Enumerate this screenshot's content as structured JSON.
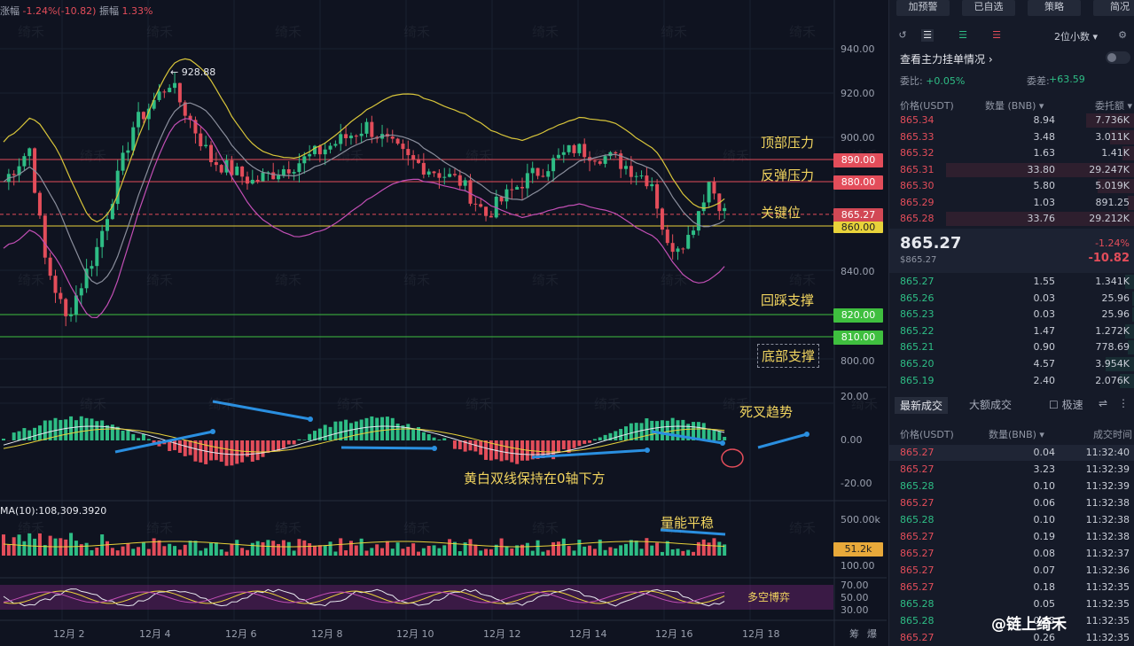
{
  "header": {
    "change_label": "涨幅",
    "change_value": "-1.24%(-10.82)",
    "amplitude_label": "振幅",
    "amplitude_value": "1.33%"
  },
  "annotations": {
    "top_pressure": "顶部压力",
    "rebound_pressure": "反弹压力",
    "key_level": "关键位",
    "pullback_support": "回踩支撑",
    "bottom_support": "底部支撑",
    "death_cross": "死叉趋势",
    "below_zero": "黄白双线保持在0轴下方",
    "volume_stable": "量能平稳",
    "bull_bear": "多空博弈",
    "high_marker": "← 928.88"
  },
  "price_levels": {
    "p890": "890.00",
    "p880": "880.00",
    "p865": "865.27",
    "p860": "860.00",
    "p820": "820.00",
    "p810": "810.00"
  },
  "price_axis": [
    "940.00",
    "920.00",
    "900.00",
    "880.00",
    "860.00",
    "840.00",
    "820.00",
    "800.00"
  ],
  "macd_axis": [
    "20.00",
    "0.00",
    "-20.00"
  ],
  "volume": {
    "ma_label": "MA(10):108,309.3920",
    "axis_top": "500.00k",
    "current": "51.2k",
    "axis_mid": "100.00"
  },
  "osc_axis": [
    "70.00",
    "50.00",
    "30.00"
  ],
  "dates": [
    "12月 2",
    "12月 4",
    "12月 6",
    "12月 8",
    "12月 10",
    "12月 12",
    "12月 14",
    "12月 16",
    "12月 18"
  ],
  "corner_labels": [
    "筹",
    "爆"
  ],
  "watermark_text": "绮禾",
  "logo_text": "@链上绮禾",
  "sidebar": {
    "buttons": [
      "加预警",
      "已自选",
      "策略",
      "简况"
    ],
    "decimal": "2位小数",
    "section_title": "查看主力挂单情况",
    "wei_bi_label": "委比:",
    "wei_bi_value": "+0.05%",
    "wei_cha_label": "委差:",
    "wei_cha_value": "+63.59",
    "book_headers": [
      "价格(USDT)",
      "数量 (BNB)",
      "委托额"
    ],
    "asks": [
      {
        "price": "865.34",
        "qty": "8.94",
        "amt": "7.736K",
        "depth": 0.2
      },
      {
        "price": "865.33",
        "qty": "3.48",
        "amt": "3.011K",
        "depth": 0.1
      },
      {
        "price": "865.32",
        "qty": "1.63",
        "amt": "1.41K",
        "depth": 0.05
      },
      {
        "price": "865.31",
        "qty": "33.80",
        "amt": "29.247K",
        "depth": 0.77
      },
      {
        "price": "865.30",
        "qty": "5.80",
        "amt": "5.019K",
        "depth": 0.15
      },
      {
        "price": "865.29",
        "qty": "1.03",
        "amt": "891.25",
        "depth": 0.03
      },
      {
        "price": "865.28",
        "qty": "33.76",
        "amt": "29.212K",
        "depth": 0.77
      }
    ],
    "last_price": "865.27",
    "last_sub": "$865.27",
    "last_pct": "-1.24%",
    "last_change": "-10.82",
    "bids": [
      {
        "price": "865.27",
        "qty": "1.55",
        "amt": "1.341K",
        "depth": 0.04
      },
      {
        "price": "865.26",
        "qty": "0.03",
        "amt": "25.96",
        "depth": 0.01
      },
      {
        "price": "865.23",
        "qty": "0.03",
        "amt": "25.96",
        "depth": 0.01
      },
      {
        "price": "865.22",
        "qty": "1.47",
        "amt": "1.272K",
        "depth": 0.04
      },
      {
        "price": "865.21",
        "qty": "0.90",
        "amt": "778.69",
        "depth": 0.03
      },
      {
        "price": "865.20",
        "qty": "4.57",
        "amt": "3.954K",
        "depth": 0.12
      },
      {
        "price": "865.19",
        "qty": "2.40",
        "amt": "2.076K",
        "depth": 0.06
      }
    ],
    "trades_tabs": [
      "最新成交",
      "大额成交",
      "极速"
    ],
    "trade_headers": [
      "价格(USDT)",
      "数量(BNB)",
      "成交时间"
    ],
    "trades": [
      {
        "price": "865.27",
        "qty": "0.04",
        "time": "11:32:40",
        "side": "sell"
      },
      {
        "price": "865.27",
        "qty": "3.23",
        "time": "11:32:39",
        "side": "sell"
      },
      {
        "price": "865.28",
        "qty": "0.10",
        "time": "11:32:39",
        "side": "buy"
      },
      {
        "price": "865.27",
        "qty": "0.06",
        "time": "11:32:38",
        "side": "sell"
      },
      {
        "price": "865.28",
        "qty": "0.10",
        "time": "11:32:38",
        "side": "buy"
      },
      {
        "price": "865.27",
        "qty": "0.19",
        "time": "11:32:38",
        "side": "sell"
      },
      {
        "price": "865.27",
        "qty": "0.08",
        "time": "11:32:37",
        "side": "sell"
      },
      {
        "price": "865.27",
        "qty": "0.07",
        "time": "11:32:36",
        "side": "sell"
      },
      {
        "price": "865.27",
        "qty": "0.18",
        "time": "11:32:35",
        "side": "sell"
      },
      {
        "price": "865.28",
        "qty": "0.05",
        "time": "11:32:35",
        "side": "buy"
      },
      {
        "price": "865.28",
        "qty": "0.03",
        "time": "11:32:35",
        "side": "buy"
      },
      {
        "price": "865.27",
        "qty": "0.26",
        "time": "11:32:35",
        "side": "sell"
      }
    ]
  },
  "colors": {
    "up": "#2ebd85",
    "down": "#e34d5a",
    "boll_upper": "#d8c53a",
    "boll_mid": "#8a8e9c",
    "boll_lower": "#c24fb5",
    "level_red": "#e34d5a",
    "level_yellow": "#e8d23a",
    "level_green": "#3fbf3f"
  }
}
